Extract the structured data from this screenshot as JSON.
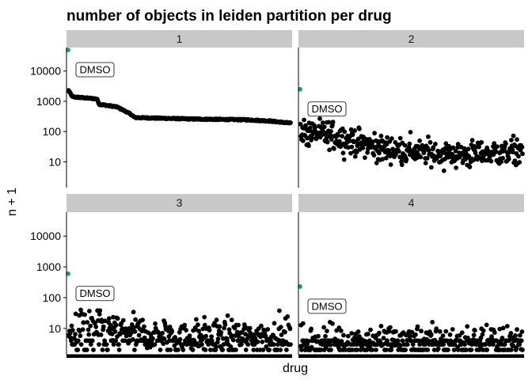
{
  "chart_data": {
    "type": "scatter",
    "title": "number of objects in leiden partition per drug",
    "xlabel": "drug",
    "ylabel": "n + 1",
    "y_scale": "log10",
    "ylim": [
      1.4,
      60000
    ],
    "y_ticks": [
      10,
      100,
      1000,
      10000
    ],
    "y_tick_labels": [
      "10",
      "100",
      "1000",
      "10000"
    ],
    "x_tick_labels": "hidden (one tick per drug, dense black band)",
    "n_drugs": 440,
    "point_color": "#000000",
    "highlight_color": "#1b9e77",
    "label_text": "DMSO",
    "panels": [
      {
        "facet": "1",
        "highlight": {
          "label": "DMSO",
          "x_index": 0,
          "y": 50000
        },
        "series": {
          "shape": "sorted-decreasing",
          "breakpoints": [
            {
              "x": 0.0,
              "y": 2400
            },
            {
              "x": 0.02,
              "y": 1400
            },
            {
              "x": 0.13,
              "y": 1200
            },
            {
              "x": 0.14,
              "y": 800
            },
            {
              "x": 0.22,
              "y": 650
            },
            {
              "x": 0.25,
              "y": 500
            },
            {
              "x": 0.28,
              "y": 380
            },
            {
              "x": 0.3,
              "y": 290
            },
            {
              "x": 0.55,
              "y": 260
            },
            {
              "x": 0.8,
              "y": 245
            },
            {
              "x": 0.9,
              "y": 225
            },
            {
              "x": 1.0,
              "y": 190
            }
          ]
        }
      },
      {
        "facet": "2",
        "highlight": {
          "label": "DMSO",
          "x_index": 0,
          "y": 2500
        },
        "series": {
          "shape": "noisy-trend",
          "trend": [
            {
              "x": 0.0,
              "y": 100
            },
            {
              "x": 0.18,
              "y": 65
            },
            {
              "x": 0.35,
              "y": 28
            },
            {
              "x": 0.55,
              "y": 20
            },
            {
              "x": 0.75,
              "y": 17
            },
            {
              "x": 1.0,
              "y": 22
            }
          ],
          "spread_log10": 0.22,
          "min": 4,
          "max": 400
        }
      },
      {
        "facet": "3",
        "highlight": {
          "label": "DMSO",
          "x_index": 0,
          "y": 600
        },
        "series": {
          "shape": "noisy-with-floor",
          "trend": [
            {
              "x": 0.0,
              "y": 7
            },
            {
              "x": 0.07,
              "y": 14
            },
            {
              "x": 0.2,
              "y": 9
            },
            {
              "x": 0.6,
              "y": 6
            },
            {
              "x": 1.0,
              "y": 7
            }
          ],
          "spread_log10": 0.25,
          "floor": 1,
          "floor_fraction": 0.3,
          "min": 2,
          "max": 40
        }
      },
      {
        "facet": "4",
        "highlight": {
          "label": "DMSO",
          "x_index": 0,
          "y": 230
        },
        "series": {
          "shape": "noisy-with-floor",
          "trend": [
            {
              "x": 0.0,
              "y": 4
            },
            {
              "x": 0.1,
              "y": 5
            },
            {
              "x": 0.5,
              "y": 5
            },
            {
              "x": 1.0,
              "y": 5
            }
          ],
          "spread_log10": 0.22,
          "floor": 1,
          "floor_fraction": 0.55,
          "min": 2,
          "max": 16
        }
      }
    ],
    "grid": false,
    "legend": "none"
  }
}
